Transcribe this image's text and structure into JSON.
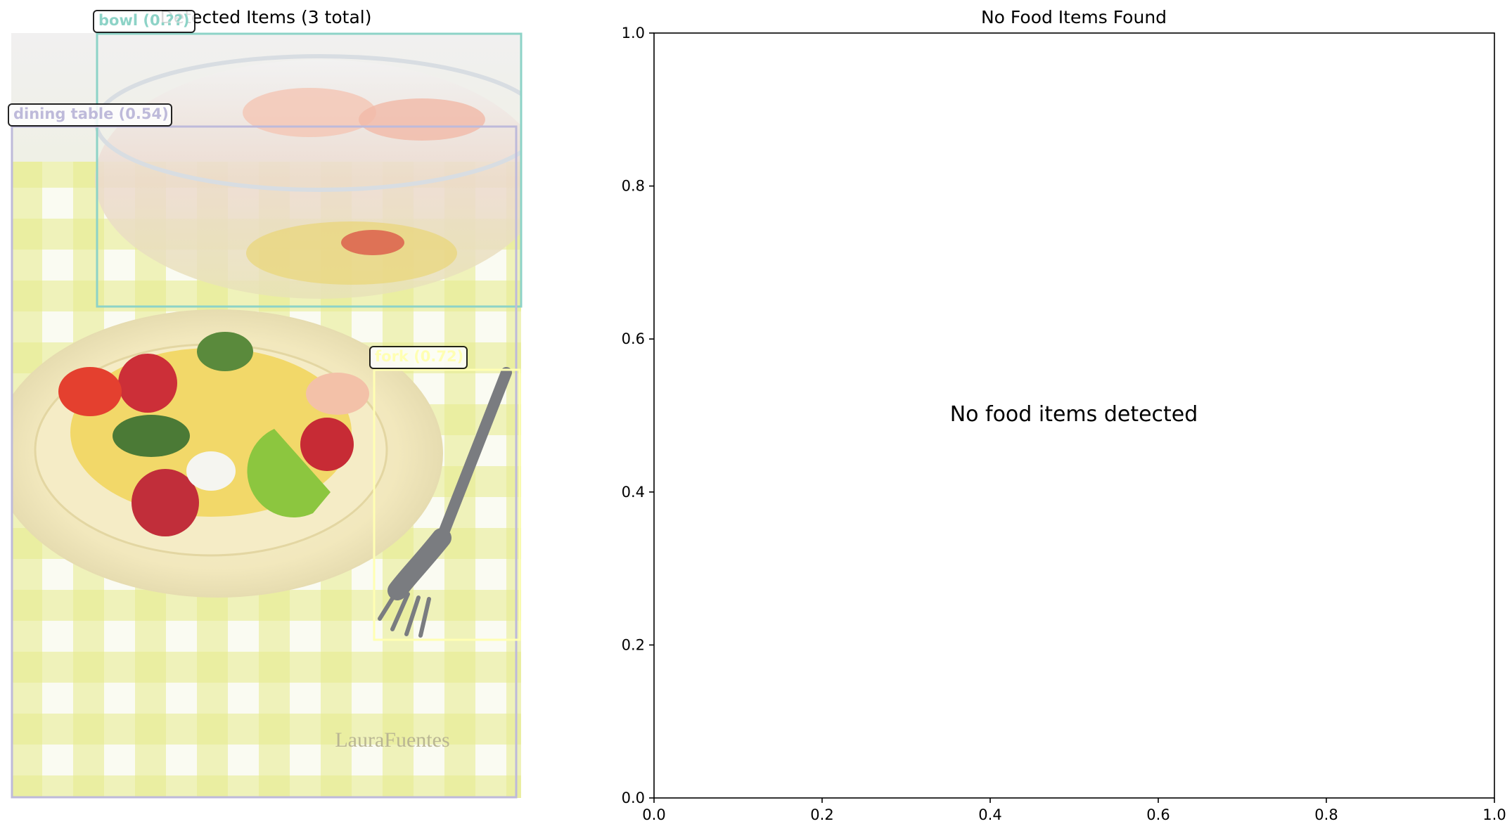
{
  "chart_data": [
    {
      "type": "other",
      "title": "Detected Items (3 total)",
      "detections": [
        {
          "label": "bowl (0.??)",
          "color": "#8dd3c7"
        },
        {
          "label": "dining table (0.54)",
          "color": "#bebada"
        },
        {
          "label": "fork (0.72)",
          "color": "#ffffb3"
        }
      ],
      "photo": {
        "description_icon": "food-photo",
        "watermark": "LauraFuentes"
      }
    },
    {
      "type": "scatter",
      "title": "No Food Items Found",
      "message": "No food items detected",
      "xlim": [
        0,
        1
      ],
      "ylim": [
        0,
        1
      ],
      "xticks": [
        "0.0",
        "0.2",
        "0.4",
        "0.6",
        "0.8",
        "1.0"
      ],
      "yticks": [
        "0.0",
        "0.2",
        "0.4",
        "0.6",
        "0.8",
        "1.0"
      ],
      "series": []
    }
  ]
}
